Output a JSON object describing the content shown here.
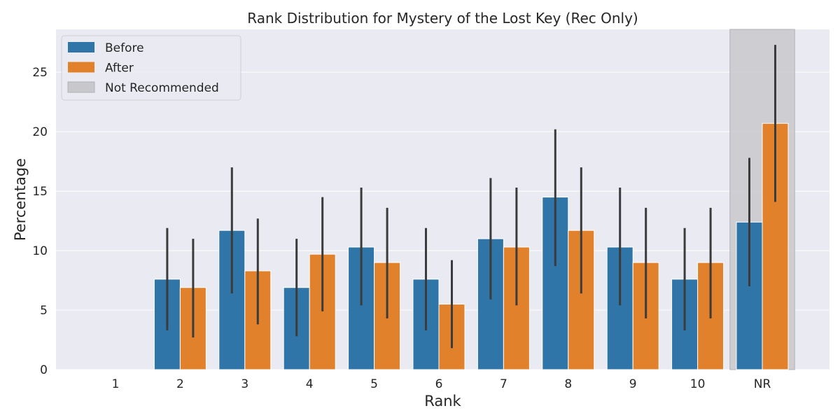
{
  "chart_data": {
    "type": "bar",
    "title": "Rank Distribution for Mystery of the Lost Key (Rec Only)",
    "xlabel": "Rank",
    "ylabel": "Percentage",
    "categories": [
      "1",
      "2",
      "3",
      "4",
      "5",
      "6",
      "7",
      "8",
      "9",
      "10",
      "NR"
    ],
    "ylim": [
      0,
      28.6
    ],
    "yticks": [
      0,
      5,
      10,
      15,
      20,
      25
    ],
    "grid": true,
    "legend_position": "top-left",
    "series": [
      {
        "name": "Before",
        "color": "#2f75a8",
        "values": [
          0,
          7.6,
          11.7,
          6.9,
          10.3,
          7.6,
          11.0,
          14.5,
          10.3,
          7.6,
          12.4
        ],
        "error_low": [
          0,
          3.3,
          6.4,
          2.8,
          5.4,
          3.3,
          5.9,
          8.7,
          5.4,
          3.3,
          7.0
        ],
        "error_high": [
          0,
          11.9,
          17.0,
          11.0,
          15.3,
          11.9,
          16.1,
          20.2,
          15.3,
          11.9,
          17.8
        ]
      },
      {
        "name": "After",
        "color": "#e1812b",
        "values": [
          0,
          6.9,
          8.3,
          9.7,
          9.0,
          5.5,
          10.3,
          11.7,
          9.0,
          9.0,
          20.7
        ],
        "error_low": [
          0,
          2.7,
          3.8,
          4.9,
          4.3,
          1.8,
          5.4,
          6.4,
          4.3,
          4.3,
          14.1
        ],
        "error_high": [
          0,
          11.0,
          12.7,
          14.5,
          13.6,
          9.2,
          15.3,
          17.0,
          13.6,
          13.6,
          27.3
        ]
      }
    ],
    "shaded_region": {
      "category": "NR",
      "name": "Not Recommended",
      "color": "#c8c8cc"
    },
    "background_color": "#eaeaf2",
    "errorbar_color": "#3b3b3b"
  }
}
